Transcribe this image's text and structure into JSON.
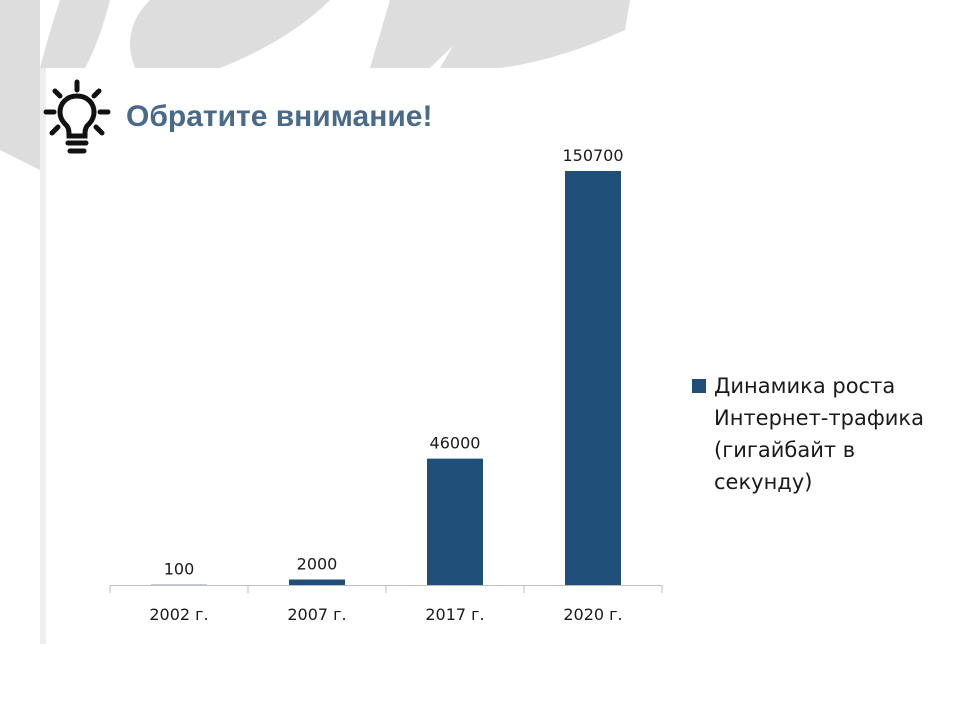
{
  "slide": {
    "title": "Обратите внимание!",
    "icon": "lightbulb-icon",
    "colors": {
      "accent": "#1f4e79",
      "title": "#4a6a8a",
      "decor": "#dcdcdc"
    }
  },
  "chart_data": {
    "type": "bar",
    "title": "",
    "xlabel": "",
    "ylabel": "",
    "categories": [
      "2002 г.",
      "2007 г.",
      "2017 г.",
      "2020 г."
    ],
    "series": [
      {
        "name": "Динамика роста Интернет-трафика (гигайбайт в секунду)",
        "values": [
          100,
          2000,
          46000,
          150700
        ],
        "color": "#1f4e79"
      }
    ],
    "data_labels": [
      "100",
      "2000",
      "46000",
      "150700"
    ],
    "ylim": [
      0,
      150700
    ],
    "legend_position": "right",
    "grid": false
  }
}
